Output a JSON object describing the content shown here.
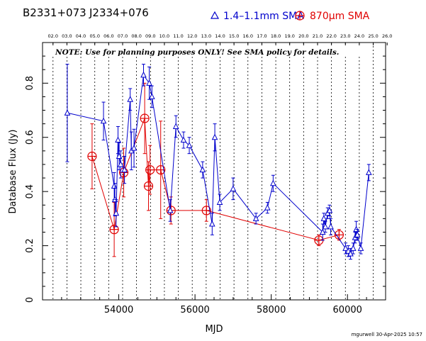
{
  "header": {
    "source_name": "B2331+073",
    "alt_name": "J2334+076"
  },
  "footer": {
    "stamp": "mgurwell 30-Apr-2025 10:57"
  },
  "note": "NOTE: Use for planning purposes ONLY!  See SMA policy for details.",
  "colors": {
    "series_1mm": "#0000cc",
    "series_870um": "#e00000",
    "axes": "#000000",
    "year_lines": "#000000"
  },
  "chart_data": {
    "type": "scatter",
    "xlabel": "MJD",
    "ylabel": "Database Flux (Jy)",
    "xlim": [
      52000,
      61000
    ],
    "ylim": [
      0,
      0.95
    ],
    "x_ticks": [
      54000,
      56000,
      58000,
      60000
    ],
    "x_tick_labels": [
      "54000",
      "56000",
      "58000",
      "60000"
    ],
    "y_ticks": [
      0,
      0.2,
      0.4,
      0.6,
      0.8
    ],
    "y_tick_labels": [
      "0",
      "0.2",
      "0.4",
      "0.6",
      "0.8"
    ],
    "top_axis": {
      "labels": [
        "02.0",
        "03.0",
        "04.0",
        "05.0",
        "06.0",
        "07.0",
        "08.0",
        "09.0",
        "10.0",
        "11.0",
        "12.0",
        "13.0",
        "14.0",
        "15.0",
        "16.0",
        "17.0",
        "18.0",
        "19.0",
        "20.0",
        "21.0",
        "22.0",
        "23.0",
        "24.0",
        "25.0",
        "26.0"
      ],
      "mjd": [
        52275,
        52640,
        53005,
        53371,
        53736,
        54101,
        54466,
        54832,
        55197,
        55562,
        55927,
        56293,
        56658,
        57023,
        57388,
        57754,
        58119,
        58484,
        58849,
        59215,
        59580,
        59945,
        60310,
        60676,
        61041
      ]
    },
    "series": [
      {
        "name": "1.4–1.1mm SMA",
        "marker": "triangle",
        "points": [
          {
            "x": 52650,
            "y": 0.69,
            "err": 0.18
          },
          {
            "x": 53600,
            "y": 0.66,
            "err": 0.07
          },
          {
            "x": 53880,
            "y": 0.42,
            "err": 0.05
          },
          {
            "x": 53900,
            "y": 0.37,
            "err": 0.06
          },
          {
            "x": 53930,
            "y": 0.32,
            "err": 0.05
          },
          {
            "x": 53980,
            "y": 0.59,
            "err": 0.05
          },
          {
            "x": 54010,
            "y": 0.53,
            "err": 0.05
          },
          {
            "x": 54050,
            "y": 0.5,
            "err": 0.05
          },
          {
            "x": 54150,
            "y": 0.48,
            "err": 0.05
          },
          {
            "x": 54300,
            "y": 0.74,
            "err": 0.04
          },
          {
            "x": 54330,
            "y": 0.55,
            "err": 0.07
          },
          {
            "x": 54400,
            "y": 0.56,
            "err": 0.07
          },
          {
            "x": 54650,
            "y": 0.83,
            "err": 0.04
          },
          {
            "x": 54800,
            "y": 0.8,
            "err": 0.06
          },
          {
            "x": 54870,
            "y": 0.75,
            "err": 0.04
          },
          {
            "x": 55350,
            "y": 0.33,
            "err": 0.04
          },
          {
            "x": 55500,
            "y": 0.64,
            "err": 0.04
          },
          {
            "x": 55700,
            "y": 0.59,
            "err": 0.03
          },
          {
            "x": 55850,
            "y": 0.57,
            "err": 0.03
          },
          {
            "x": 56200,
            "y": 0.48,
            "err": 0.03
          },
          {
            "x": 56450,
            "y": 0.28,
            "err": 0.04
          },
          {
            "x": 56520,
            "y": 0.6,
            "err": 0.05
          },
          {
            "x": 56650,
            "y": 0.36,
            "err": 0.03
          },
          {
            "x": 57000,
            "y": 0.41,
            "err": 0.04
          },
          {
            "x": 57600,
            "y": 0.3,
            "err": 0.02
          },
          {
            "x": 57900,
            "y": 0.34,
            "err": 0.02
          },
          {
            "x": 58050,
            "y": 0.43,
            "err": 0.03
          },
          {
            "x": 59350,
            "y": 0.25,
            "err": 0.03
          },
          {
            "x": 59380,
            "y": 0.3,
            "err": 0.02
          },
          {
            "x": 59420,
            "y": 0.27,
            "err": 0.02
          },
          {
            "x": 59480,
            "y": 0.32,
            "err": 0.02
          },
          {
            "x": 59530,
            "y": 0.33,
            "err": 0.02
          },
          {
            "x": 59560,
            "y": 0.27,
            "err": 0.03
          },
          {
            "x": 59950,
            "y": 0.19,
            "err": 0.02
          },
          {
            "x": 60020,
            "y": 0.18,
            "err": 0.02
          },
          {
            "x": 60080,
            "y": 0.17,
            "err": 0.02
          },
          {
            "x": 60150,
            "y": 0.19,
            "err": 0.02
          },
          {
            "x": 60200,
            "y": 0.23,
            "err": 0.02
          },
          {
            "x": 60230,
            "y": 0.26,
            "err": 0.03
          },
          {
            "x": 60260,
            "y": 0.24,
            "err": 0.02
          },
          {
            "x": 60350,
            "y": 0.19,
            "err": 0.02
          },
          {
            "x": 60560,
            "y": 0.47,
            "err": 0.03
          }
        ]
      },
      {
        "name": "870μm SMA",
        "marker": "circle-plus",
        "points": [
          {
            "x": 53300,
            "y": 0.53,
            "err": 0.12
          },
          {
            "x": 53880,
            "y": 0.26,
            "err": 0.1
          },
          {
            "x": 54130,
            "y": 0.47,
            "err": 0.09
          },
          {
            "x": 54680,
            "y": 0.67,
            "err": 0.13
          },
          {
            "x": 54780,
            "y": 0.42,
            "err": 0.09
          },
          {
            "x": 54820,
            "y": 0.48,
            "err": 0.09
          },
          {
            "x": 55100,
            "y": 0.48,
            "err": 0.18
          },
          {
            "x": 55370,
            "y": 0.33,
            "err": 0.05
          },
          {
            "x": 56300,
            "y": 0.33,
            "err": 0.04
          },
          {
            "x": 59250,
            "y": 0.22,
            "err": 0.02
          },
          {
            "x": 59780,
            "y": 0.24,
            "err": 0.02
          }
        ]
      }
    ]
  }
}
